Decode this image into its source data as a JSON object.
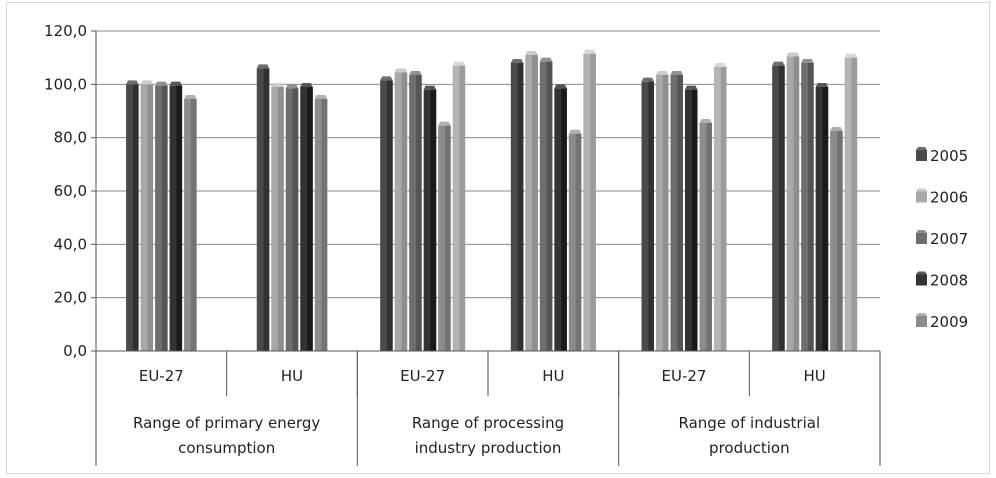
{
  "chart_data": {
    "type": "bar",
    "title": "",
    "xlabel": "",
    "ylabel": "",
    "ylim": [
      0,
      120
    ],
    "y_ticks": [
      "0,0",
      "20,0",
      "40,0",
      "60,0",
      "80,0",
      "100,0",
      "120,0"
    ],
    "grid": true,
    "legend_position": "right",
    "groups": [
      {
        "label": "Range of primary energy consumption",
        "lines": [
          "Range of primary energy",
          "consumption"
        ]
      },
      {
        "label": "Range of processing industry production",
        "lines": [
          "Range of processing",
          "industry production"
        ]
      },
      {
        "label": "Range of industrial production",
        "lines": [
          "Range of industrial",
          "production"
        ]
      }
    ],
    "categories": [
      "EU-27",
      "HU",
      "EU-27",
      "HU",
      "EU-27",
      "HU"
    ],
    "series": [
      {
        "name": "2005",
        "color": "#4a4a4a",
        "values": [
          100.0,
          106.0,
          101.5,
          108.0,
          101.0,
          107.0
        ]
      },
      {
        "name": "2006",
        "color": "#a8a8a8",
        "values": [
          100.0,
          99.0,
          104.5,
          111.0,
          103.5,
          110.5
        ]
      },
      {
        "name": "2007",
        "color": "#6e6e6e",
        "values": [
          99.5,
          98.5,
          103.5,
          108.5,
          103.5,
          108.0
        ]
      },
      {
        "name": "2008",
        "color": "#333333",
        "values": [
          99.5,
          99.0,
          98.0,
          98.5,
          98.0,
          99.0
        ]
      },
      {
        "name": "2009",
        "color": "#8c8c8c",
        "values": [
          94.5,
          94.5,
          84.5,
          81.5,
          85.5,
          82.5
        ]
      }
    ],
    "extra_bars": [
      {
        "category_index": 2,
        "color": "#b4b4b4",
        "value": 107.0
      },
      {
        "category_index": 3,
        "color": "#b4b4b4",
        "value": 111.5
      },
      {
        "category_index": 4,
        "color": "#b4b4b4",
        "value": 106.5
      },
      {
        "category_index": 5,
        "color": "#b4b4b4",
        "value": 110.0
      }
    ]
  }
}
